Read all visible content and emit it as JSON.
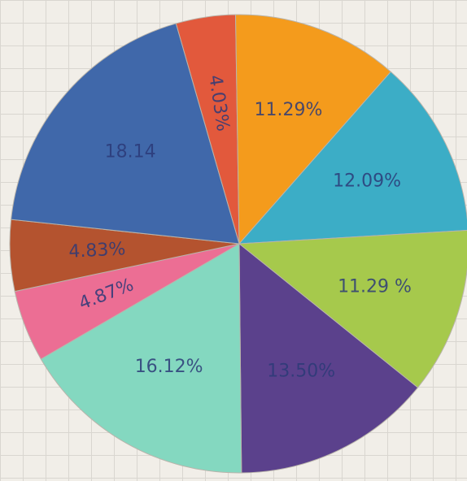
{
  "chart_data": {
    "type": "pie",
    "categories": [
      null,
      null,
      null,
      null,
      null,
      null,
      null,
      null,
      null
    ],
    "values": [
      4.03,
      11.29,
      12.09,
      11.29,
      13.5,
      16.12,
      4.87,
      4.83,
      18.14
    ],
    "value_labels": [
      "4.03%",
      "11.29%",
      "12.09%",
      "11.29 %",
      "13.50%",
      "16.12%",
      "4.87%",
      "4.83%",
      "18.14"
    ],
    "colors": [
      "#e2593c",
      "#f49b1c",
      "#3cadc6",
      "#a6c94c",
      "#5b418c",
      "#84d8c0",
      "#ec6e94",
      "#b4532f",
      "#4068aa"
    ]
  }
}
